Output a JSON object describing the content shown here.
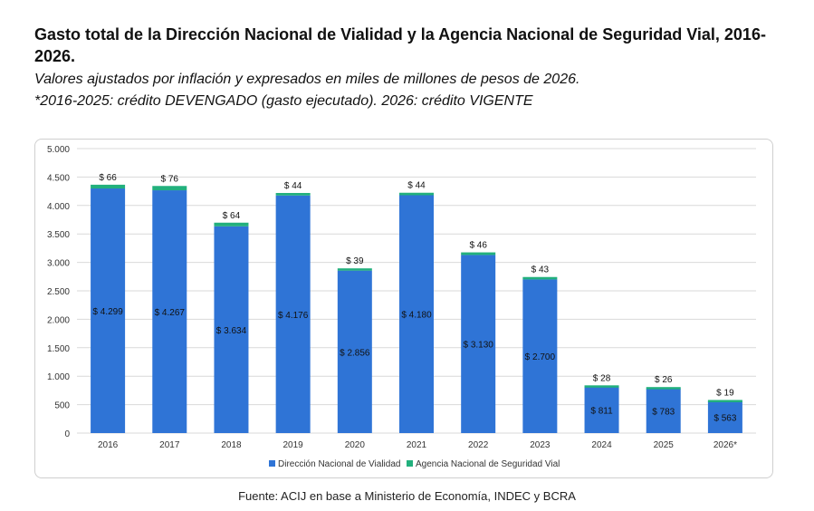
{
  "header": {
    "title": "Gasto total de la Dirección Nacional de Vialidad y la Agencia Nacional de Seguridad Vial, 2016-2026.",
    "subtitle": "Valores ajustados por inflación y expresados en miles de millones de pesos de 2026.",
    "note": "*2016-2025: crédito DEVENGADO (gasto ejecutado). 2026: crédito VIGENTE"
  },
  "footer": {
    "source": "Fuente: ACIJ en base a Ministerio de Economía, INDEC y BCRA"
  },
  "colors": {
    "series_dnv": "#2f74d6",
    "series_ansv": "#22b07d",
    "grid": "#d9d9d9",
    "axis_text": "#333333"
  },
  "chart_data": {
    "type": "bar",
    "stacked": true,
    "categories": [
      "2016",
      "2017",
      "2018",
      "2019",
      "2020",
      "2021",
      "2022",
      "2023",
      "2024",
      "2025",
      "2026*"
    ],
    "series": [
      {
        "name": "Dirección Nacional de Vialidad",
        "values": [
          4299,
          4267,
          3634,
          4176,
          2856,
          4180,
          3130,
          2700,
          811,
          783,
          563
        ],
        "labels": [
          "$ 4.299",
          "$ 4.267",
          "$ 3.634",
          "$ 4.176",
          "$ 2.856",
          "$ 4.180",
          "$ 3.130",
          "$ 2.700",
          "$ 811",
          "$ 783",
          "$ 563"
        ]
      },
      {
        "name": "Agencia Nacional de Seguridad Vial",
        "values": [
          66,
          76,
          64,
          44,
          39,
          44,
          46,
          43,
          28,
          26,
          19
        ],
        "labels": [
          "$ 66",
          "$ 76",
          "$ 64",
          "$ 44",
          "$ 39",
          "$ 44",
          "$ 46",
          "$ 43",
          "$ 28",
          "$ 26",
          "$ 19"
        ]
      }
    ],
    "yticks": [
      0,
      500,
      1000,
      1500,
      2000,
      2500,
      3000,
      3500,
      4000,
      4500,
      5000
    ],
    "ytick_labels": [
      "0",
      "500",
      "1.000",
      "1.500",
      "2.000",
      "2.500",
      "3.000",
      "3.500",
      "4.000",
      "4.500",
      "5.000"
    ],
    "ylim": [
      0,
      5000
    ],
    "grid": true,
    "legend_position": "bottom"
  }
}
